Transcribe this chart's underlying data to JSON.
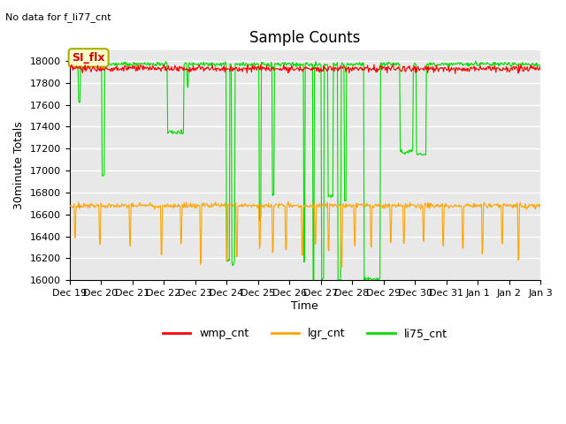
{
  "title": "Sample Counts",
  "top_left_text": "No data for f_li77_cnt",
  "ylabel": "30minute Totals",
  "xlabel": "Time",
  "ylim": [
    16000,
    18100
  ],
  "yticks": [
    16000,
    16200,
    16400,
    16600,
    16800,
    17000,
    17200,
    17400,
    17600,
    17800,
    18000
  ],
  "xtick_labels": [
    "Dec 19",
    "Dec 20",
    "Dec 21",
    "Dec 22",
    "Dec 23",
    "Dec 24",
    "Dec 25",
    "Dec 26",
    "Dec 27",
    "Dec 28",
    "Dec 29",
    "Dec 30",
    "Dec 31",
    "Jan 1",
    "Jan 2",
    "Jan 3"
  ],
  "wmp_base": 17930,
  "lgr_base": 16680,
  "li75_base": 17970,
  "legend_labels": [
    "wmp_cnt",
    "lgr_cnt",
    "li75_cnt"
  ],
  "legend_colors": [
    "#ff0000",
    "#ffa500",
    "#00dd00"
  ],
  "annotation_text": "SI_flx",
  "bg_color": "#e8e8e8",
  "grid_color": "#ffffff",
  "wmp_color": "#ff0000",
  "lgr_color": "#ffa500",
  "li75_color": "#00dd00",
  "figsize": [
    6.4,
    4.8
  ],
  "dpi": 100
}
